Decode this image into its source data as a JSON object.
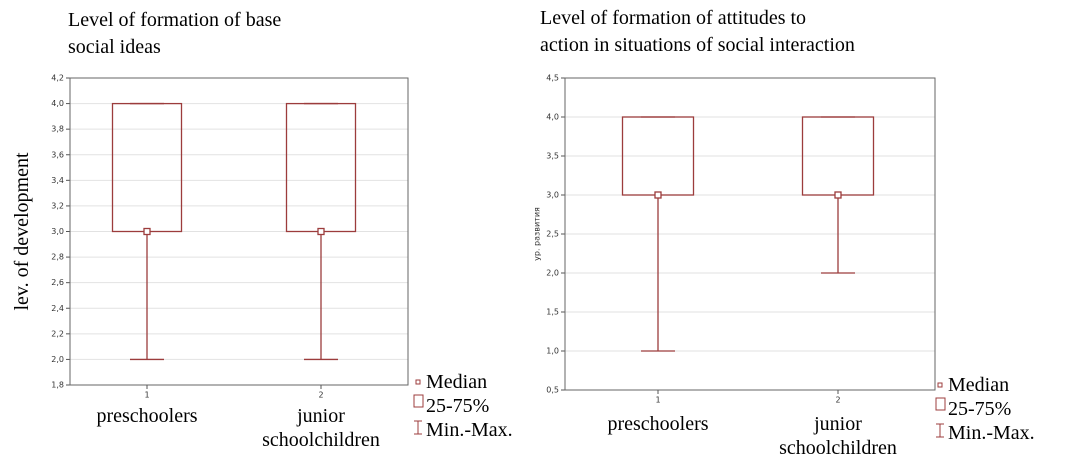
{
  "chart_data": [
    {
      "type": "box",
      "title": [
        "Level of formation of base",
        "social ideas"
      ],
      "ylabel": "lev. of development",
      "categories": [
        "1",
        "2"
      ],
      "category_names": [
        [
          "preschoolers"
        ],
        [
          "junior",
          "schoolchildren"
        ]
      ],
      "boxes": [
        {
          "min": 2,
          "q1": 3,
          "median": 3,
          "q3": 4,
          "max": 4
        },
        {
          "min": 2,
          "q1": 3,
          "median": 3,
          "q3": 4,
          "max": 4
        }
      ],
      "ylim": [
        1.8,
        4.2
      ],
      "yticks": [
        {
          "value": 1.8,
          "label": "1,8"
        },
        {
          "value": 2.0,
          "label": "2,0"
        },
        {
          "value": 2.2,
          "label": "2,2"
        },
        {
          "value": 2.4,
          "label": "2,4"
        },
        {
          "value": 2.6,
          "label": "2,6"
        },
        {
          "value": 2.8,
          "label": "2,8"
        },
        {
          "value": 3.0,
          "label": "3,0"
        },
        {
          "value": 3.2,
          "label": "3,2"
        },
        {
          "value": 3.4,
          "label": "3,4"
        },
        {
          "value": 3.6,
          "label": "3,6"
        },
        {
          "value": 3.8,
          "label": "3,8"
        },
        {
          "value": 4.0,
          "label": "4,0"
        },
        {
          "value": 4.2,
          "label": "4,2"
        }
      ],
      "grid": true,
      "color": "#9c3c3c",
      "legend": [
        "Median",
        "25-75%",
        "Min.-Max."
      ]
    },
    {
      "type": "box",
      "title": [
        "Level of formation of attitudes to",
        "action in situations of social interaction"
      ],
      "ylabel": "ур. развития",
      "categories": [
        "1",
        "2"
      ],
      "category_names": [
        [
          "preschoolers"
        ],
        [
          "junior",
          "schoolchildren"
        ]
      ],
      "boxes": [
        {
          "min": 1,
          "q1": 3,
          "median": 3,
          "q3": 4,
          "max": 4
        },
        {
          "min": 2,
          "q1": 3,
          "median": 3,
          "q3": 4,
          "max": 4
        }
      ],
      "ylim": [
        0.5,
        4.5
      ],
      "yticks": [
        {
          "value": 0.5,
          "label": "0,5"
        },
        {
          "value": 1.0,
          "label": "1,0"
        },
        {
          "value": 1.5,
          "label": "1,5"
        },
        {
          "value": 2.0,
          "label": "2,0"
        },
        {
          "value": 2.5,
          "label": "2,5"
        },
        {
          "value": 3.0,
          "label": "3,0"
        },
        {
          "value": 3.5,
          "label": "3,5"
        },
        {
          "value": 4.0,
          "label": "4,0"
        },
        {
          "value": 4.5,
          "label": "4,5"
        }
      ],
      "grid": true,
      "color": "#9c3c3c",
      "legend": [
        "Median",
        "25-75%",
        "Min.-Max."
      ]
    }
  ]
}
